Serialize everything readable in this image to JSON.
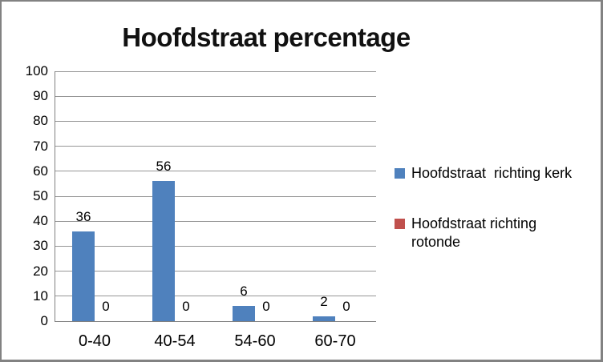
{
  "frame": {
    "border_color": "#828282",
    "background": "#FFFFFF",
    "grid_color": "#969696",
    "axis_color": "#808080"
  },
  "chart_data": {
    "type": "bar",
    "title": "Hoofdstraat percentage",
    "categories": [
      "0-40",
      "40-54",
      "54-60",
      "60-70"
    ],
    "series": [
      {
        "name": "Hoofdstraat  richting kerk",
        "color": "#4F81BD",
        "values": [
          36,
          56,
          6,
          2
        ]
      },
      {
        "name": "Hoofdstraat richting rotonde",
        "color": "#C0504D",
        "values": [
          0,
          0,
          0,
          0
        ]
      }
    ],
    "data_labels": true,
    "y_ticks": [
      0,
      10,
      20,
      30,
      40,
      50,
      60,
      70,
      80,
      90,
      100
    ],
    "ylim": [
      0,
      100
    ],
    "xlabel": "",
    "ylabel": "",
    "grid": true,
    "legend_position": "right"
  }
}
